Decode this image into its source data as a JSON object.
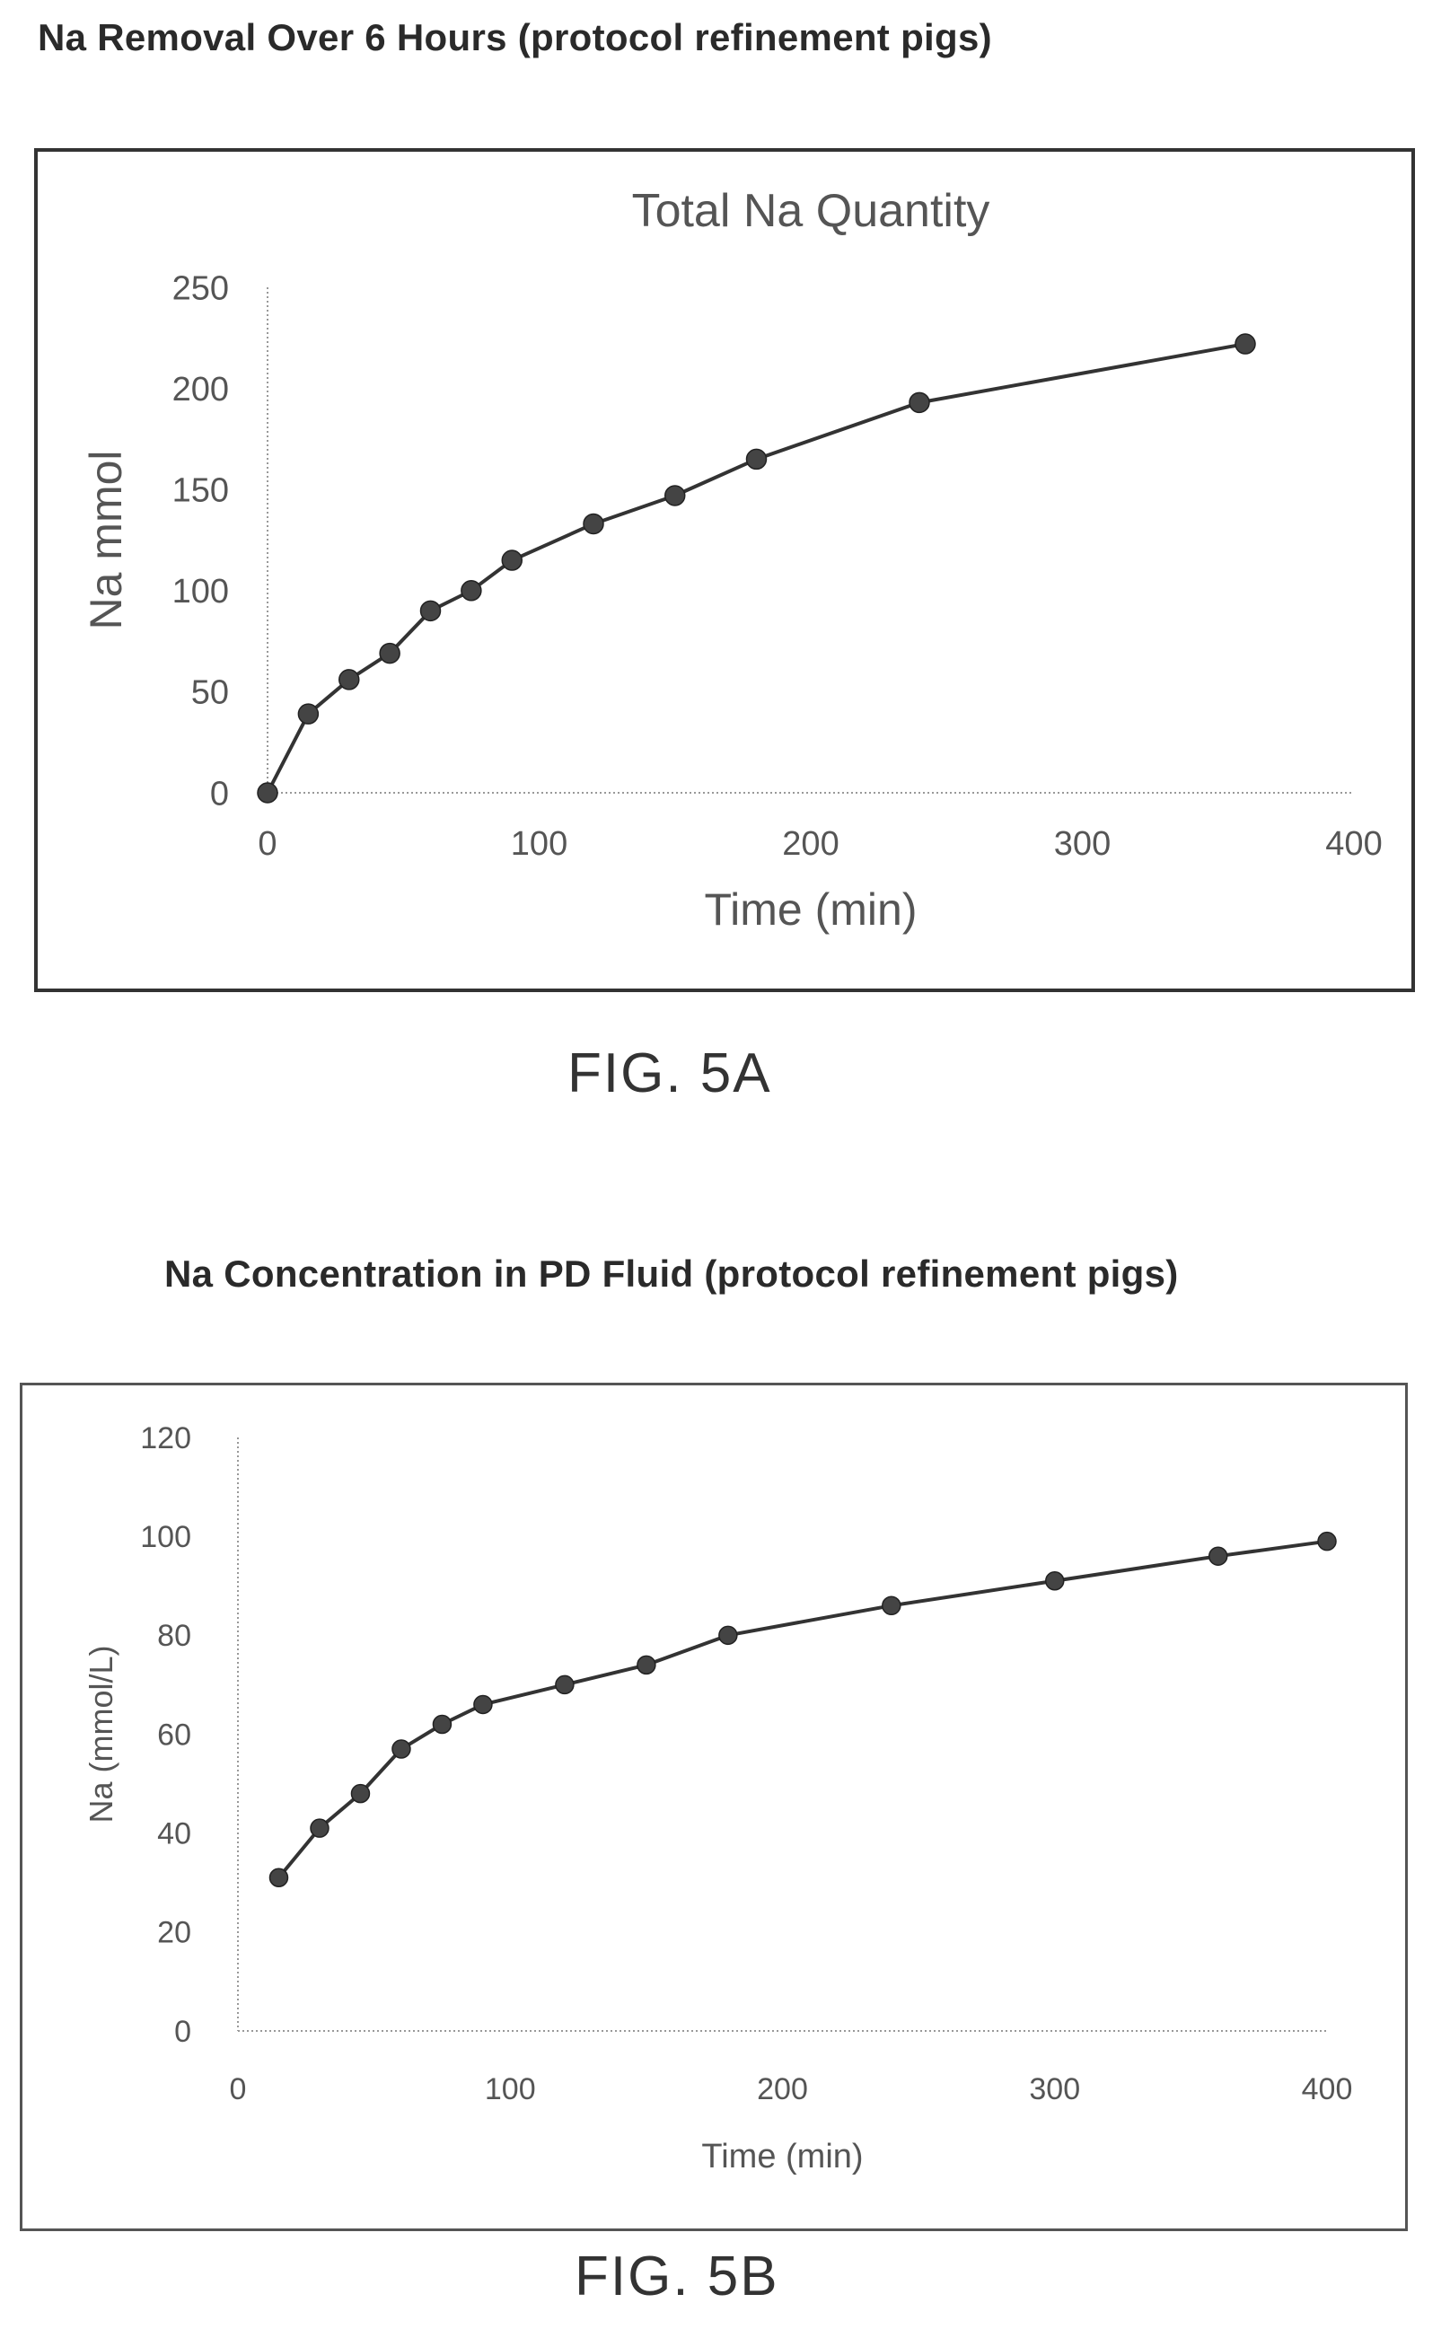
{
  "figure_a": {
    "heading": "Na Removal Over 6 Hours (protocol refinement pigs)",
    "caption": "FIG. 5A"
  },
  "figure_b": {
    "heading": "Na Concentration in PD Fluid (protocol refinement pigs)",
    "caption": "FIG. 5B"
  },
  "colors": {
    "line": "#333333",
    "marker": "#444444",
    "axis": "#999999"
  },
  "chart_data": [
    {
      "type": "line",
      "title": "Total Na Quantity",
      "xlabel": "Time (min)",
      "ylabel": "Na mmol",
      "xlim": [
        0,
        400
      ],
      "ylim": [
        0,
        250
      ],
      "xticks": [
        "0",
        "100",
        "200",
        "300",
        "400"
      ],
      "yticks": [
        "0",
        "50",
        "100",
        "150",
        "200",
        "250"
      ],
      "grid": false,
      "legend": "none",
      "series": [
        {
          "x": [
            0,
            15,
            30,
            45,
            60,
            75,
            90,
            120,
            150,
            180,
            240,
            360
          ],
          "y": [
            0,
            39,
            56,
            69,
            90,
            100,
            115,
            133,
            147,
            165,
            193,
            222
          ]
        }
      ]
    },
    {
      "type": "line",
      "title": "",
      "xlabel": "Time (min)",
      "ylabel": "Na (mmol/L)",
      "xlim": [
        0,
        400
      ],
      "ylim": [
        0,
        120
      ],
      "xticks": [
        "0",
        "100",
        "200",
        "300",
        "400"
      ],
      "yticks": [
        "0",
        "20",
        "40",
        "60",
        "80",
        "100",
        "120"
      ],
      "grid": false,
      "legend": "none",
      "series": [
        {
          "x": [
            15,
            30,
            45,
            60,
            75,
            90,
            120,
            150,
            180,
            240,
            300,
            360,
            400
          ],
          "y": [
            31,
            41,
            48,
            57,
            62,
            66,
            70,
            74,
            80,
            86,
            91,
            96,
            99
          ]
        }
      ]
    }
  ]
}
